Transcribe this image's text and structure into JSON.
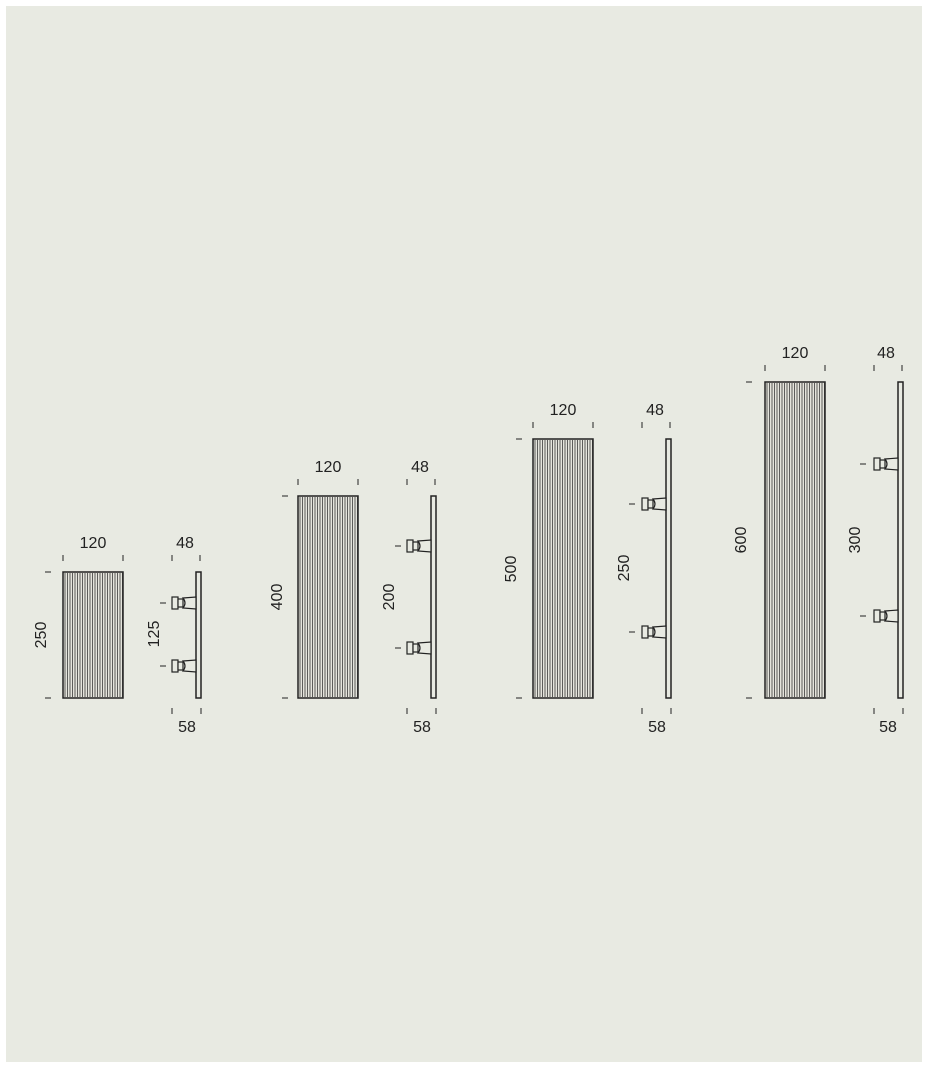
{
  "colors": {
    "background": "#e8eae2",
    "line": "#222222",
    "panel_fill": "#e4e4dc"
  },
  "units": [
    {
      "width": "120",
      "height": "250",
      "depth": "48",
      "offset": "58",
      "bracket_spacing": "125"
    },
    {
      "width": "120",
      "height": "400",
      "depth": "48",
      "offset": "58",
      "bracket_spacing": "200"
    },
    {
      "width": "120",
      "height": "500",
      "depth": "48",
      "offset": "58",
      "bracket_spacing": "250"
    },
    {
      "width": "120",
      "height": "600",
      "depth": "48",
      "offset": "58",
      "bracket_spacing": "300"
    }
  ]
}
